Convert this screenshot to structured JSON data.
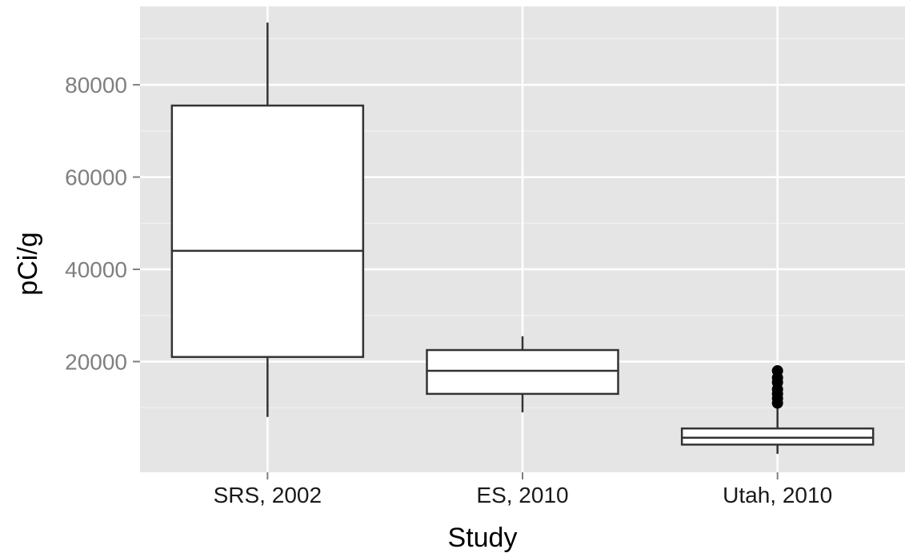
{
  "chart_data": {
    "type": "box",
    "title": "",
    "xlabel": "Study",
    "ylabel": "pCi/g",
    "ylim": [
      -4000,
      97000
    ],
    "y_ticks": [
      20000,
      40000,
      60000,
      80000
    ],
    "y_tick_labels": [
      "20000",
      "40000",
      "60000",
      "80000"
    ],
    "grid": true,
    "categories": [
      "SRS, 2002",
      "ES, 2010",
      "Utah, 2010"
    ],
    "boxes": [
      {
        "category": "SRS, 2002",
        "whisker_low": 8000,
        "q1": 21000,
        "median": 44000,
        "q3": 75500,
        "whisker_high": 93500,
        "outliers": []
      },
      {
        "category": "ES, 2010",
        "whisker_low": 9000,
        "q1": 13000,
        "median": 18000,
        "q3": 22500,
        "whisker_high": 25500,
        "outliers": []
      },
      {
        "category": "Utah, 2010",
        "whisker_low": 0,
        "q1": 2000,
        "median": 3500,
        "q3": 5500,
        "whisker_high": 10500,
        "outliers": [
          11000,
          12000,
          13000,
          14000,
          15500,
          16500,
          18000
        ]
      }
    ]
  }
}
